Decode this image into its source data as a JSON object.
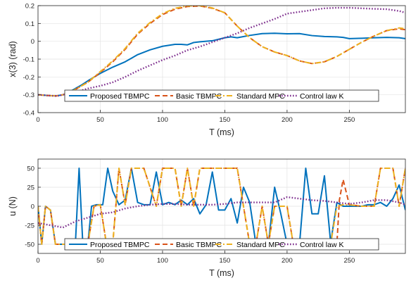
{
  "chart_data": [
    {
      "type": "line",
      "xlabel": "T (ms)",
      "ylabel": "x(3) (rad)",
      "xlim": [
        0,
        295
      ],
      "ylim": [
        -0.4,
        0.2
      ],
      "xticks": [
        0,
        50,
        100,
        150,
        200,
        250
      ],
      "yticks": [
        -0.4,
        -0.3,
        -0.2,
        -0.1,
        0,
        0.1,
        0.2
      ],
      "ytick_labels": [
        "-0.4",
        "-0.3",
        "-0.2",
        "-0.1",
        "0",
        "0.1",
        "0.2"
      ],
      "grid": true,
      "legend_position": "bottom",
      "series": [
        {
          "name": "Proposed TBMPC",
          "color": "#0072bd",
          "dash": "solid",
          "x": [
            0,
            10,
            15,
            20,
            25,
            30,
            35,
            40,
            50,
            60,
            70,
            75,
            80,
            90,
            100,
            110,
            115,
            120,
            125,
            130,
            140,
            150,
            155,
            160,
            170,
            180,
            190,
            200,
            210,
            220,
            230,
            240,
            245,
            250,
            260,
            270,
            280,
            290,
            295
          ],
          "y": [
            -0.3,
            -0.305,
            -0.306,
            -0.3,
            -0.285,
            -0.265,
            -0.245,
            -0.222,
            -0.18,
            -0.145,
            -0.115,
            -0.095,
            -0.075,
            -0.048,
            -0.028,
            -0.017,
            -0.017,
            -0.02,
            -0.007,
            -0.003,
            0.003,
            0.02,
            0.025,
            0.02,
            0.033,
            0.043,
            0.045,
            0.042,
            0.043,
            0.032,
            0.027,
            0.025,
            0.022,
            0.015,
            0.017,
            0.02,
            0.022,
            0.02,
            0.015
          ]
        },
        {
          "name": "Basic TBMPC",
          "color": "#d95319",
          "dash": "dashed",
          "x": [
            0,
            10,
            15,
            20,
            30,
            40,
            50,
            60,
            70,
            80,
            90,
            100,
            110,
            120,
            130,
            140,
            150,
            160,
            170,
            180,
            190,
            200,
            210,
            220,
            230,
            240,
            250,
            260,
            270,
            280,
            290,
            295
          ],
          "y": [
            -0.3,
            -0.305,
            -0.306,
            -0.3,
            -0.27,
            -0.23,
            -0.175,
            -0.115,
            -0.045,
            0.04,
            0.1,
            0.15,
            0.18,
            0.195,
            0.198,
            0.185,
            0.16,
            0.085,
            0.02,
            -0.03,
            -0.06,
            -0.08,
            -0.11,
            -0.125,
            -0.115,
            -0.085,
            -0.045,
            -0.005,
            0.03,
            0.06,
            0.07,
            0.065
          ]
        },
        {
          "name": "Standard MPC",
          "color": "#edb120",
          "dash": "dashdot",
          "x": [
            0,
            10,
            15,
            20,
            30,
            40,
            50,
            60,
            70,
            80,
            90,
            100,
            110,
            120,
            130,
            140,
            150,
            160,
            170,
            180,
            190,
            200,
            210,
            220,
            230,
            240,
            250,
            260,
            270,
            280,
            290,
            295
          ],
          "y": [
            -0.3,
            -0.305,
            -0.306,
            -0.3,
            -0.27,
            -0.23,
            -0.17,
            -0.11,
            -0.04,
            0.045,
            0.105,
            0.155,
            0.185,
            0.198,
            0.2,
            0.187,
            0.16,
            0.085,
            0.02,
            -0.03,
            -0.06,
            -0.08,
            -0.11,
            -0.125,
            -0.115,
            -0.085,
            -0.045,
            -0.005,
            0.03,
            0.06,
            0.075,
            0.07
          ]
        },
        {
          "name": "Control law K",
          "color": "#7e2f8e",
          "dash": "dotted",
          "x": [
            0,
            10,
            15,
            20,
            30,
            40,
            50,
            60,
            70,
            80,
            90,
            100,
            110,
            120,
            130,
            140,
            150,
            160,
            170,
            180,
            190,
            200,
            210,
            220,
            230,
            240,
            250,
            260,
            270,
            280,
            290,
            295
          ],
          "y": [
            -0.3,
            -0.305,
            -0.307,
            -0.3,
            -0.285,
            -0.265,
            -0.25,
            -0.23,
            -0.2,
            -0.165,
            -0.135,
            -0.105,
            -0.08,
            -0.05,
            -0.03,
            -0.005,
            0.02,
            0.045,
            0.075,
            0.1,
            0.125,
            0.155,
            0.165,
            0.175,
            0.185,
            0.188,
            0.188,
            0.185,
            0.182,
            0.18,
            0.17,
            0.16
          ]
        }
      ]
    },
    {
      "type": "line",
      "xlabel": "T (ms)",
      "ylabel": "u (N)",
      "xlim": [
        0,
        295
      ],
      "ylim": [
        -62,
        62
      ],
      "xticks": [
        0,
        50,
        100,
        150,
        200,
        250
      ],
      "yticks": [
        -50,
        -25,
        0,
        25,
        50
      ],
      "ytick_labels": [
        "-50",
        "-25",
        "0",
        "25",
        "50"
      ],
      "grid": true,
      "legend_position": "bottom",
      "series": [
        {
          "name": "Proposed TBMPC",
          "color": "#0072bd",
          "dash": "solid",
          "x": [
            0,
            3,
            6,
            10,
            14,
            20,
            25,
            30,
            33,
            36,
            40,
            43,
            47,
            52,
            56,
            60,
            65,
            70,
            75,
            80,
            85,
            90,
            95,
            100,
            105,
            110,
            115,
            120,
            125,
            130,
            135,
            140,
            145,
            150,
            155,
            160,
            165,
            170,
            175,
            180,
            185,
            190,
            195,
            200,
            205,
            210,
            215,
            220,
            225,
            230,
            235,
            240,
            245,
            250,
            255,
            260,
            265,
            270,
            275,
            280,
            285,
            290,
            295
          ],
          "y": [
            0,
            -50,
            0,
            -5,
            -50,
            -50,
            -50,
            -50,
            50,
            -50,
            -50,
            0,
            2,
            2,
            50,
            20,
            2,
            8,
            50,
            5,
            2,
            2,
            45,
            2,
            5,
            2,
            8,
            2,
            10,
            -10,
            2,
            45,
            -5,
            -5,
            10,
            -22,
            25,
            5,
            -50,
            -50,
            -50,
            25,
            -10,
            -50,
            -50,
            -50,
            50,
            -10,
            -10,
            40,
            -48,
            5,
            0,
            0,
            0,
            0,
            2,
            2,
            5,
            0,
            10,
            28,
            -5
          ]
        },
        {
          "name": "Basic TBMPC",
          "color": "#d95319",
          "dash": "dashed",
          "x": [
            0,
            3,
            6,
            10,
            14,
            20,
            30,
            35,
            40,
            45,
            50,
            55,
            60,
            65,
            70,
            75,
            80,
            85,
            95,
            100,
            105,
            110,
            115,
            120,
            125,
            130,
            135,
            145,
            150,
            155,
            160,
            165,
            170,
            175,
            180,
            185,
            190,
            200,
            205,
            210,
            215,
            220,
            230,
            235,
            240,
            242,
            245,
            250,
            260,
            270,
            275,
            285,
            290,
            295
          ],
          "y": [
            0,
            -50,
            0,
            -5,
            -50,
            -50,
            -50,
            -50,
            -50,
            0,
            2,
            -50,
            -50,
            50,
            2,
            50,
            50,
            50,
            0,
            50,
            50,
            50,
            0,
            50,
            0,
            50,
            50,
            50,
            50,
            50,
            50,
            0,
            -50,
            -50,
            0,
            -50,
            0,
            0,
            -50,
            -50,
            -50,
            -50,
            -50,
            -50,
            -50,
            8,
            35,
            2,
            0,
            0,
            50,
            50,
            0,
            50
          ]
        },
        {
          "name": "Standard MPC",
          "color": "#edb120",
          "dash": "dashdot",
          "x": [
            0,
            3,
            6,
            10,
            14,
            20,
            30,
            35,
            40,
            45,
            50,
            55,
            60,
            65,
            70,
            75,
            80,
            85,
            95,
            100,
            105,
            110,
            115,
            120,
            125,
            130,
            135,
            145,
            150,
            155,
            160,
            165,
            170,
            175,
            180,
            185,
            190,
            200,
            205,
            210,
            215,
            220,
            230,
            235,
            240,
            245,
            250,
            260,
            270,
            275,
            285,
            290,
            295
          ],
          "y": [
            0,
            -50,
            0,
            -5,
            -50,
            -50,
            -50,
            -50,
            -50,
            0,
            2,
            -50,
            -50,
            50,
            2,
            50,
            50,
            50,
            0,
            50,
            50,
            50,
            0,
            50,
            0,
            50,
            50,
            50,
            50,
            50,
            50,
            0,
            -50,
            -50,
            0,
            -50,
            0,
            0,
            -50,
            -50,
            -50,
            -50,
            -50,
            -50,
            0,
            2,
            2,
            0,
            0,
            50,
            50,
            0,
            50
          ]
        },
        {
          "name": "Control law K",
          "color": "#7e2f8e",
          "dash": "dotted",
          "x": [
            0,
            10,
            20,
            30,
            40,
            50,
            60,
            70,
            80,
            90,
            100,
            110,
            120,
            130,
            140,
            150,
            160,
            170,
            180,
            190,
            200,
            210,
            220,
            230,
            240,
            250,
            260,
            270,
            280,
            290,
            295
          ],
          "y": [
            -22,
            -25,
            -28,
            -20,
            -15,
            -10,
            -8,
            -3,
            0,
            2,
            3,
            3,
            2,
            2,
            2,
            3,
            5,
            5,
            5,
            5,
            12,
            10,
            8,
            7,
            5,
            3,
            5,
            8,
            8,
            5,
            2
          ]
        }
      ]
    }
  ]
}
